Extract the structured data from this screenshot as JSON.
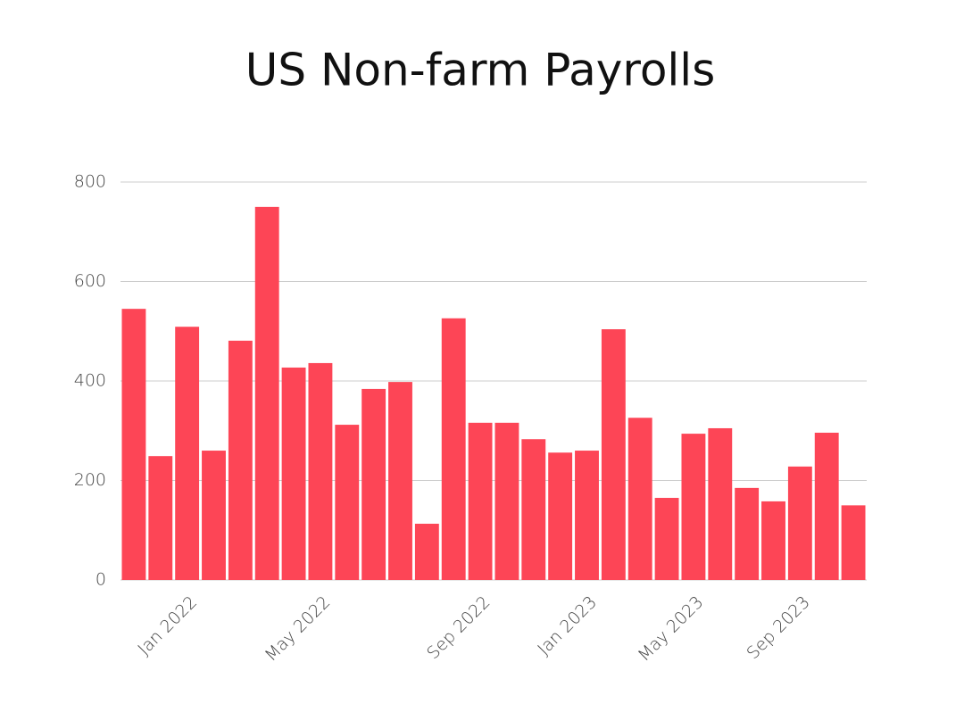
{
  "chart_data": {
    "type": "bar",
    "title": "US Non-farm Payrolls",
    "categories": [
      null,
      null,
      "Jan 2022",
      null,
      null,
      null,
      null,
      "May 2022",
      null,
      null,
      null,
      null,
      null,
      "Sep 2022",
      null,
      null,
      null,
      "Jan 2023",
      null,
      null,
      null,
      "May 2023",
      null,
      null,
      null,
      "Sep 2023",
      null,
      null
    ],
    "values": [
      545,
      249,
      509,
      260,
      481,
      750,
      427,
      436,
      312,
      384,
      398,
      113,
      526,
      316,
      316,
      283,
      256,
      260,
      504,
      326,
      165,
      294,
      305,
      185,
      158,
      228,
      296,
      150
    ],
    "color": "#fd4556",
    "ylim": [
      0,
      800
    ],
    "yticks": [
      0,
      200,
      400,
      600,
      800
    ],
    "grid": true
  }
}
